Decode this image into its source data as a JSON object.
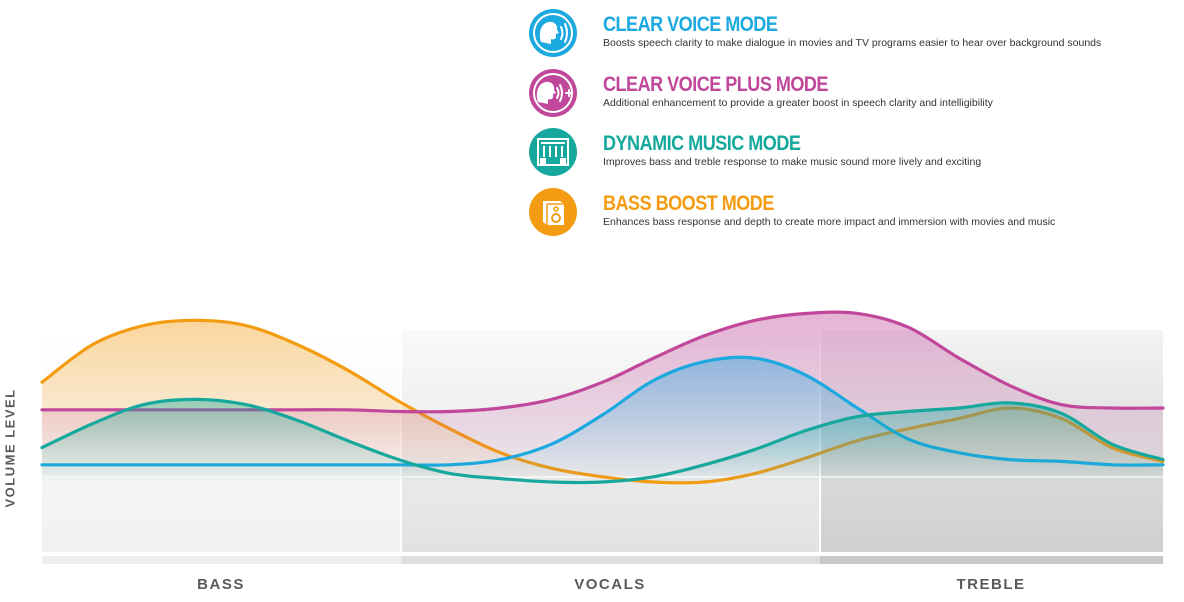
{
  "legend": {
    "modes": [
      {
        "title": "CLEAR VOICE MODE",
        "description": "Boosts speech clarity to make dialogue in movies and TV programs easier to hear over background sounds",
        "color": "#1ba9e0",
        "icon": "speaking-head-icon"
      },
      {
        "title": "CLEAR VOICE PLUS MODE",
        "description": "Additional enhancement to provide a greater boost in speech clarity and intelligibility",
        "color": "#c0479a",
        "icon": "speaking-head-plus-icon"
      },
      {
        "title": "DYNAMIC MUSIC MODE",
        "description": "Improves bass and treble response to make music sound more lively and exciting",
        "color": "#16a89c",
        "icon": "stage-speakers-icon"
      },
      {
        "title": "BASS BOOST MODE",
        "description": "Enhances bass response and depth to create more impact and immersion with movies and music",
        "color": "#f39c12",
        "icon": "subwoofer-icon"
      }
    ]
  },
  "chart_data": {
    "type": "line",
    "ylabel": "VOLUME LEVEL",
    "categories": [
      "BASS",
      "VOCALS",
      "TREBLE"
    ],
    "x": [
      0,
      1,
      2,
      3,
      4,
      5,
      6,
      7,
      8,
      9,
      10,
      11,
      12,
      13,
      14,
      15,
      16,
      17,
      18,
      19,
      20,
      21,
      22
    ],
    "grid": false,
    "series": [
      {
        "name": "BASS BOOST MODE",
        "color": "#f39c12",
        "values": [
          0.58,
          0.8,
          0.91,
          0.94,
          0.91,
          0.8,
          0.65,
          0.47,
          0.31,
          0.17,
          0.08,
          0.03,
          0.0,
          0.0,
          0.05,
          0.14,
          0.24,
          0.31,
          0.37,
          0.43,
          0.37,
          0.2,
          0.12
        ]
      },
      {
        "name": "CLEAR VOICE PLUS MODE",
        "color": "#c0479a",
        "values": [
          0.42,
          0.42,
          0.42,
          0.42,
          0.42,
          0.42,
          0.42,
          0.41,
          0.41,
          0.43,
          0.48,
          0.58,
          0.72,
          0.85,
          0.94,
          0.98,
          0.98,
          0.9,
          0.72,
          0.56,
          0.45,
          0.43,
          0.43
        ]
      },
      {
        "name": "CLEAR VOICE MODE",
        "color": "#1ba9e0",
        "values": [
          0.1,
          0.1,
          0.1,
          0.1,
          0.1,
          0.1,
          0.1,
          0.1,
          0.1,
          0.13,
          0.22,
          0.39,
          0.59,
          0.7,
          0.72,
          0.62,
          0.43,
          0.25,
          0.17,
          0.13,
          0.12,
          0.1,
          0.1
        ]
      },
      {
        "name": "DYNAMIC MUSIC MODE",
        "color": "#16a89c",
        "values": [
          0.2,
          0.34,
          0.45,
          0.48,
          0.45,
          0.36,
          0.24,
          0.13,
          0.05,
          0.02,
          0.0,
          0.0,
          0.03,
          0.1,
          0.19,
          0.3,
          0.38,
          0.41,
          0.43,
          0.46,
          0.4,
          0.22,
          0.13
        ]
      }
    ]
  }
}
